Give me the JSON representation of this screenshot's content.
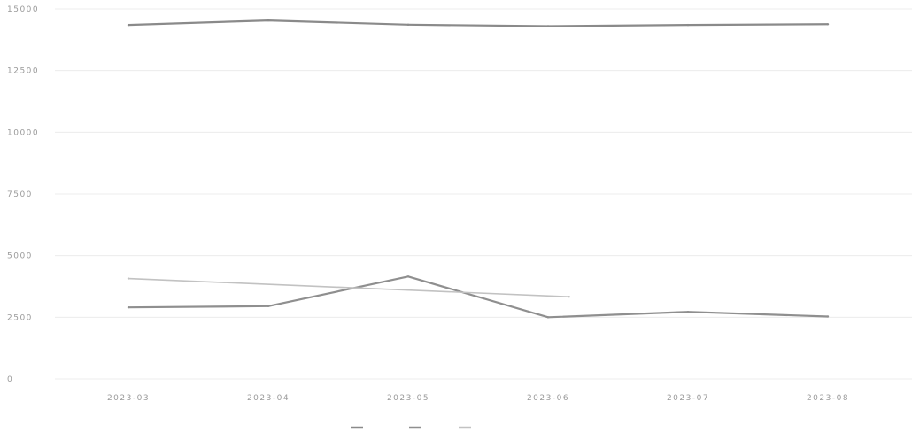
{
  "chart_data": {
    "type": "line",
    "title": "",
    "xlabel": "",
    "ylabel": "",
    "categories": [
      "2023-03",
      "2023-04",
      "2023-05",
      "2023-06",
      "2023-07",
      "2023-08"
    ],
    "ylim": [
      0,
      15000
    ],
    "yticks": [
      "0",
      "2500",
      "5000",
      "7500",
      "10000",
      "12500",
      "15000"
    ],
    "grid": true,
    "legend_position": "bottom-center",
    "series": [
      {
        "name": "",
        "color": "#8a8a8a",
        "values": [
          14350,
          14530,
          14360,
          14300,
          14350,
          14380
        ]
      },
      {
        "name": "",
        "color": "#8f8f8f",
        "values": [
          2900,
          2950,
          4150,
          2500,
          2720,
          2530
        ]
      },
      {
        "name": "",
        "color": "#c2c2c2",
        "values": [
          4070,
          null,
          3330,
          null,
          null,
          null
        ],
        "x_positions": [
          0,
          null,
          3.15,
          null,
          null,
          null
        ]
      }
    ],
    "legend_labels": [
      "",
      "",
      ""
    ]
  }
}
